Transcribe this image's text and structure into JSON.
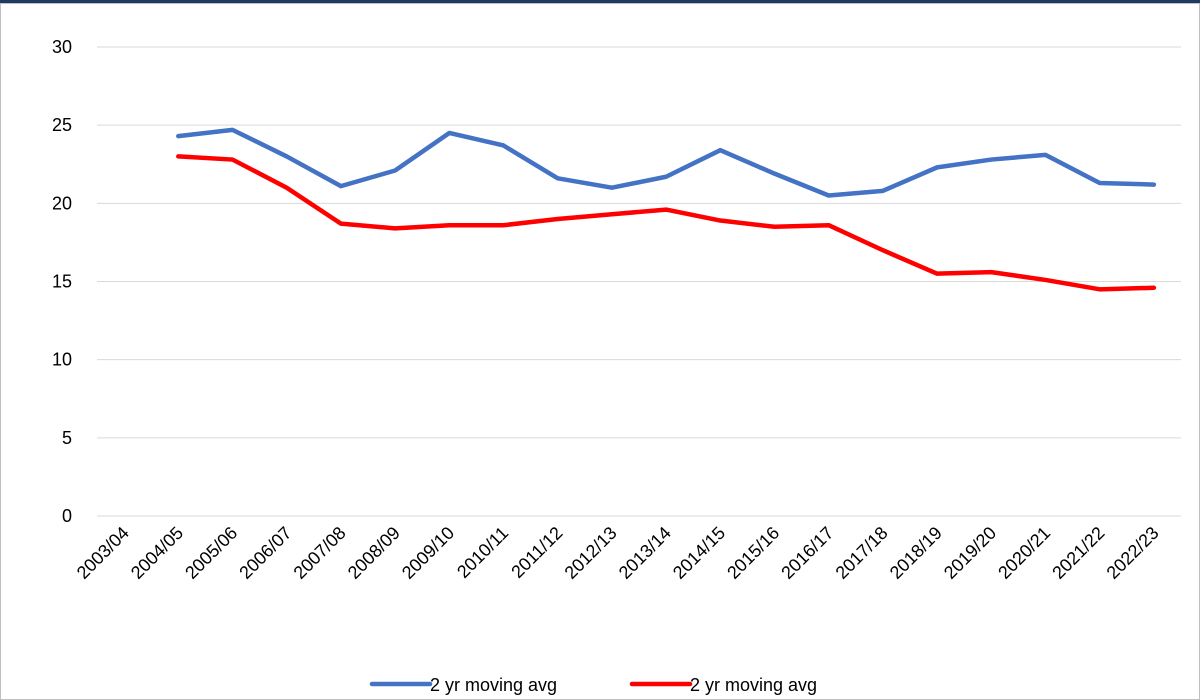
{
  "chart_data": {
    "type": "line",
    "categories": [
      "2003/04",
      "2004/05",
      "2005/06",
      "2006/07",
      "2007/08",
      "2008/09",
      "2009/10",
      "2010/11",
      "2011/12",
      "2012/13",
      "2013/14",
      "2014/15",
      "2015/16",
      "2016/17",
      "2017/18",
      "2018/19",
      "2019/20",
      "2020/21",
      "2021/22",
      "2022/23"
    ],
    "series": [
      {
        "name": "2 yr moving avg",
        "color": "#4472c4",
        "values": [
          null,
          24.3,
          24.7,
          23.0,
          21.1,
          22.1,
          24.5,
          23.7,
          21.6,
          21.0,
          21.7,
          23.4,
          21.9,
          20.5,
          20.8,
          22.3,
          22.8,
          23.1,
          21.3,
          21.2
        ]
      },
      {
        "name": "2 yr moving avg",
        "color": "#ff0000",
        "values": [
          null,
          23.0,
          22.8,
          21.0,
          18.7,
          18.4,
          18.6,
          18.6,
          19.0,
          19.3,
          19.6,
          18.9,
          18.5,
          18.6,
          17.0,
          15.5,
          15.6,
          15.1,
          14.5,
          14.6
        ]
      }
    ],
    "ylim": [
      0,
      30
    ],
    "yticks": [
      0,
      5,
      10,
      15,
      20,
      25,
      30
    ],
    "grid": true,
    "legend": "bottom"
  }
}
